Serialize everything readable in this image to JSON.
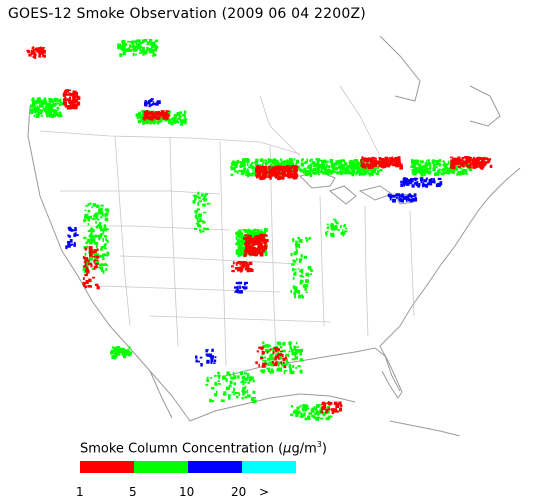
{
  "title": "GOES-12 Smoke Observation (2009 06 04  2200Z)",
  "legend": {
    "label_prefix": "Smoke Column Concentration (",
    "unit_mu": "μ",
    "unit_rest": "g/m",
    "unit_exp": "3",
    "label_suffix": ")",
    "bins": [
      {
        "color": "#ff0000"
      },
      {
        "color": "#00ff00"
      },
      {
        "color": "#0000ff"
      },
      {
        "color": "#00ffff"
      }
    ],
    "ticks": [
      "1",
      "5",
      "10",
      "20",
      ">"
    ]
  }
}
